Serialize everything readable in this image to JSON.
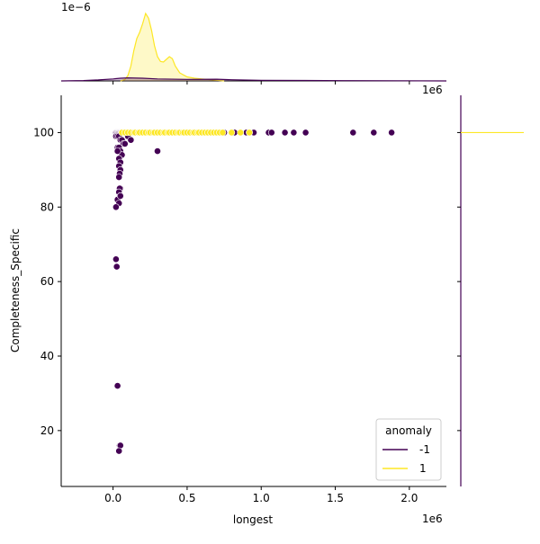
{
  "colors": {
    "anomaly_neg": "#440154",
    "anomaly_pos": "#fde725",
    "kde_fill_pos": "#fde725",
    "axis": "#000000",
    "legend_frame": "#cccccc",
    "background": "#ffffff"
  },
  "chart_data": {
    "type": "scatter",
    "title": "",
    "xlabel": "longest",
    "ylabel": "Completeness_Specific",
    "x_offset_label": "1e6",
    "top_offset_label": "1e−6",
    "top_right_offset_label": "1e6",
    "xlim": [
      -0.35,
      2.25
    ],
    "ylim": [
      5,
      110
    ],
    "x_ticks": [
      0.0,
      0.5,
      1.0,
      1.5,
      2.0
    ],
    "x_tick_labels": [
      "0.0",
      "0.5",
      "1.0",
      "1.5",
      "2.0"
    ],
    "y_ticks": [
      20,
      40,
      60,
      80,
      100
    ],
    "y_tick_labels": [
      "20",
      "40",
      "60",
      "80",
      "100"
    ],
    "grid": false,
    "legend": {
      "title": "anomaly",
      "placement": "lower-right",
      "entries": [
        {
          "label": "-1",
          "color": "#440154"
        },
        {
          "label": "1",
          "color": "#fde725"
        }
      ]
    },
    "series": [
      {
        "name": "1",
        "color": "#fde725",
        "x": [
          0.06,
          0.08,
          0.1,
          0.12,
          0.14,
          0.15,
          0.17,
          0.18,
          0.2,
          0.22,
          0.24,
          0.25,
          0.27,
          0.28,
          0.3,
          0.32,
          0.34,
          0.35,
          0.37,
          0.38,
          0.4,
          0.42,
          0.44,
          0.45,
          0.47,
          0.48,
          0.5,
          0.52,
          0.54,
          0.55,
          0.57,
          0.58,
          0.6,
          0.62,
          0.64,
          0.66,
          0.68,
          0.7,
          0.72,
          0.74,
          0.8,
          0.86,
          0.92
        ],
        "y": [
          100,
          100,
          100,
          100,
          100,
          100,
          100,
          100,
          100,
          100,
          100,
          100,
          100,
          100,
          100,
          100,
          100,
          100,
          100,
          100,
          100,
          100,
          100,
          100,
          100,
          100,
          100,
          100,
          100,
          100,
          100,
          100,
          100,
          100,
          100,
          100,
          100,
          100,
          100,
          100,
          100,
          100,
          100
        ]
      },
      {
        "name": "-1",
        "color": "#440154",
        "x": [
          0.02,
          0.025,
          0.03,
          0.035,
          0.04,
          0.045,
          0.05,
          0.055,
          0.06,
          0.07,
          0.08,
          0.09,
          0.1,
          0.11,
          0.02,
          0.03,
          0.04,
          0.05,
          0.06,
          0.07,
          0.08,
          0.1,
          0.12,
          0.03,
          0.04,
          0.05,
          0.06,
          0.04,
          0.05,
          0.04,
          0.05,
          0.045,
          0.04,
          0.05,
          0.045,
          0.04,
          0.05,
          0.03,
          0.05,
          0.04,
          0.02,
          0.03,
          0.02,
          0.025,
          0.03,
          0.045,
          0.05,
          0.04,
          0.3,
          0.66,
          0.7,
          0.75,
          0.8,
          0.82,
          0.9,
          0.92,
          0.95,
          1.05,
          1.07,
          1.16,
          1.22,
          1.3,
          1.62,
          1.76,
          1.88
        ],
        "y": [
          100,
          100,
          100,
          100,
          100,
          100,
          100,
          100,
          100,
          100,
          100,
          100,
          100,
          100,
          99,
          99,
          99,
          98,
          98,
          97,
          97,
          99,
          98,
          96,
          96,
          95,
          94,
          93,
          92,
          91,
          90,
          89,
          88,
          85,
          85,
          84,
          83,
          82,
          83,
          81,
          80,
          95,
          66,
          64,
          32,
          16,
          16,
          14.5,
          95,
          100,
          100,
          100,
          100,
          100,
          100,
          100,
          100,
          100,
          100,
          100,
          100,
          100,
          100,
          100,
          100
        ]
      }
    ],
    "top_marginal_kde": {
      "series": [
        {
          "name": "1",
          "color": "#fde725",
          "x": [
            0.05,
            0.08,
            0.1,
            0.12,
            0.14,
            0.16,
            0.18,
            0.2,
            0.22,
            0.24,
            0.26,
            0.28,
            0.3,
            0.32,
            0.34,
            0.36,
            0.38,
            0.4,
            0.42,
            0.45,
            0.5,
            0.55,
            0.6,
            0.65,
            0.7,
            0.75
          ],
          "density": [
            0.0,
            0.02,
            0.08,
            0.22,
            0.45,
            0.63,
            0.72,
            0.85,
            1.0,
            0.93,
            0.75,
            0.52,
            0.36,
            0.29,
            0.28,
            0.32,
            0.36,
            0.33,
            0.22,
            0.12,
            0.06,
            0.04,
            0.03,
            0.02,
            0.01,
            0.0
          ]
        },
        {
          "name": "-1",
          "color": "#440154",
          "x": [
            -0.35,
            -0.2,
            -0.1,
            0.0,
            0.05,
            0.1,
            0.2,
            0.3,
            0.5,
            0.7,
            0.8,
            1.0,
            1.3,
            1.6,
            1.9,
            2.25
          ],
          "density": [
            0.0,
            0.005,
            0.015,
            0.03,
            0.04,
            0.045,
            0.04,
            0.03,
            0.022,
            0.025,
            0.018,
            0.01,
            0.006,
            0.004,
            0.002,
            0.0
          ]
        }
      ]
    },
    "right_marginal_kde": {
      "series": [
        {
          "name": "1",
          "color": "#fde725",
          "y_peak": 100
        },
        {
          "name": "-1",
          "color": "#440154",
          "y_peak": 100
        }
      ]
    }
  }
}
